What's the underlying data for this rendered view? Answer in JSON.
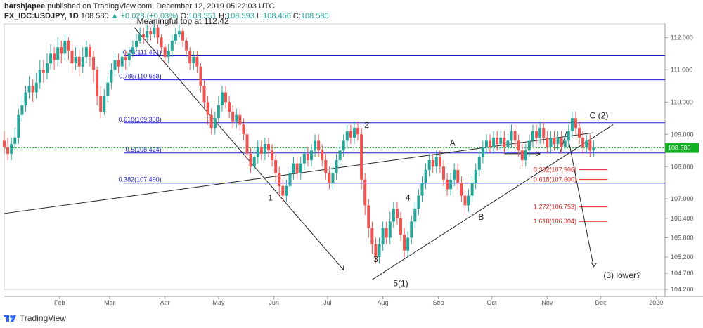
{
  "header": {
    "user": "harshjapee",
    "published_text": "published on TradingView.com, December 12, 2019 05:22:03 UTC",
    "symbol": "FX_IDC:USDJPY, 1D",
    "last": "108.580",
    "change": "+0.028 (+0.03%)",
    "o_label": "O:",
    "o_value": "108.551",
    "h_label": "H:",
    "h_value": "108.593",
    "l_label": "L:",
    "l_value": "108.456",
    "c_label": "C:",
    "c_value": "108.580"
  },
  "footer": {
    "brand": "TradingView"
  },
  "colors": {
    "up": "#26a69a",
    "down": "#ef5350",
    "fib": "#1c1ccc",
    "ext": "#e02020",
    "price_tag": "#13b023"
  },
  "chart_data": {
    "type": "candlestick",
    "title": "FX_IDC:USDJPY, 1D",
    "ylim": [
      104.2,
      112.42
    ],
    "y_ticks": [
      "112.000",
      "111.000",
      "110.000",
      "109.000",
      "108.000",
      "107.000",
      "106.400",
      "105.800",
      "105.200",
      "104.700",
      "104.200"
    ],
    "y_tick_values": [
      112.0,
      111.0,
      110.0,
      109.0,
      108.0,
      107.0,
      106.4,
      105.8,
      105.2,
      104.7,
      104.2
    ],
    "x_ticks": [
      "Feb",
      "Mar",
      "Apr",
      "May",
      "Jun",
      "Jul",
      "Aug",
      "Sep",
      "Oct",
      "Nov",
      "Dec",
      "2020"
    ],
    "x_tick_days": [
      31,
      59,
      90,
      120,
      151,
      181,
      212,
      243,
      273,
      304,
      334,
      365
    ],
    "xlim_days": [
      0,
      370
    ],
    "current_price": {
      "value": 108.58,
      "label": "108.580"
    },
    "fib_levels": [
      {
        "label": "0.88(111.431)",
        "value": 111.431
      },
      {
        "label": "0.786(110.688)",
        "value": 110.688
      },
      {
        "label": "0.618(109.358)",
        "value": 109.358
      },
      {
        "label": "0.5(108.424)",
        "value": 108.424
      },
      {
        "label": "0.382(107.490)",
        "value": 107.49
      }
    ],
    "extension_levels": [
      {
        "label": "0.382(107.906)",
        "value": 107.906
      },
      {
        "label": "0.618(107.600)",
        "value": 107.6
      },
      {
        "label": "1.272(106.753)",
        "value": 106.753
      },
      {
        "label": "1.618(106.304)",
        "value": 106.304
      }
    ],
    "annotations": [
      {
        "text": "Meaningful top at 112.42",
        "day": 100,
        "price": 112.42
      },
      {
        "text": "1",
        "day": 149,
        "price": 106.95
      },
      {
        "text": "2",
        "day": 203,
        "price": 109.2
      },
      {
        "text": "3",
        "day": 208,
        "price": 105.05
      },
      {
        "text": "4",
        "day": 226,
        "price": 106.95
      },
      {
        "text": "5(1)",
        "day": 222,
        "price": 104.3
      },
      {
        "text": "A",
        "day": 251,
        "price": 108.65
      },
      {
        "text": "B",
        "day": 267,
        "price": 106.35
      },
      {
        "text": "C (2)",
        "day": 333,
        "price": 109.5
      },
      {
        "text": "(3) lower?",
        "day": 346,
        "price": 104.55
      }
    ],
    "candles": [
      [
        0,
        108.8,
        108.6,
        109.1,
        108.4
      ],
      [
        2,
        108.6,
        108.4,
        108.9,
        108.2
      ],
      [
        4,
        108.4,
        108.7,
        108.9,
        108.2
      ],
      [
        6,
        108.7,
        108.9,
        109.2,
        108.5
      ],
      [
        8,
        108.9,
        109.6,
        109.8,
        108.7
      ],
      [
        10,
        109.6,
        109.9,
        110.2,
        109.4
      ],
      [
        12,
        109.9,
        110.3,
        110.5,
        109.7
      ],
      [
        14,
        110.3,
        110.5,
        110.8,
        110.1
      ],
      [
        16,
        110.5,
        110.3,
        110.7,
        110.0
      ],
      [
        18,
        110.3,
        110.6,
        110.9,
        110.1
      ],
      [
        20,
        110.6,
        111.0,
        111.3,
        110.4
      ],
      [
        22,
        111.0,
        110.9,
        111.3,
        110.6
      ],
      [
        24,
        110.9,
        111.2,
        111.5,
        110.7
      ],
      [
        26,
        111.2,
        111.5,
        111.8,
        111.0
      ],
      [
        28,
        111.5,
        111.3,
        111.7,
        111.0
      ],
      [
        30,
        111.3,
        111.7,
        112.0,
        111.1
      ],
      [
        32,
        111.7,
        111.5,
        111.9,
        111.2
      ],
      [
        34,
        111.5,
        111.9,
        112.1,
        111.3
      ],
      [
        36,
        111.9,
        111.6,
        112.0,
        111.3
      ],
      [
        38,
        111.6,
        111.2,
        111.8,
        110.9
      ],
      [
        40,
        111.2,
        111.4,
        111.7,
        111.0
      ],
      [
        42,
        111.4,
        111.1,
        111.6,
        110.8
      ],
      [
        44,
        111.1,
        111.4,
        111.7,
        110.9
      ],
      [
        46,
        111.4,
        111.7,
        111.9,
        111.2
      ],
      [
        48,
        111.7,
        111.4,
        111.8,
        111.1
      ],
      [
        50,
        111.4,
        111.0,
        111.6,
        110.6
      ],
      [
        52,
        111.0,
        110.2,
        111.1,
        109.9
      ],
      [
        54,
        110.2,
        109.7,
        110.5,
        109.5
      ],
      [
        56,
        109.7,
        110.2,
        110.4,
        109.6
      ],
      [
        58,
        110.2,
        110.6,
        110.8,
        110.0
      ],
      [
        60,
        110.6,
        111.0,
        111.2,
        110.4
      ],
      [
        62,
        111.0,
        111.3,
        111.5,
        110.8
      ],
      [
        64,
        111.3,
        111.1,
        111.5,
        110.9
      ],
      [
        66,
        111.1,
        111.4,
        111.6,
        110.9
      ],
      [
        68,
        111.4,
        111.3,
        111.6,
        111.0
      ],
      [
        70,
        111.3,
        111.5,
        111.7,
        111.1
      ],
      [
        72,
        111.5,
        111.7,
        111.9,
        111.4
      ],
      [
        74,
        111.7,
        111.9,
        112.1,
        111.6
      ],
      [
        76,
        111.9,
        112.1,
        112.3,
        111.8
      ],
      [
        78,
        112.1,
        112.0,
        112.3,
        111.8
      ],
      [
        80,
        112.0,
        112.2,
        112.4,
        111.9
      ],
      [
        82,
        112.2,
        112.1,
        112.3,
        111.9
      ],
      [
        84,
        112.1,
        112.3,
        112.42,
        112.0
      ],
      [
        86,
        112.3,
        112.0,
        112.4,
        111.8
      ],
      [
        88,
        112.0,
        111.7,
        112.1,
        111.5
      ],
      [
        90,
        111.7,
        111.4,
        111.8,
        111.2
      ],
      [
        92,
        111.4,
        111.6,
        111.8,
        111.2
      ],
      [
        94,
        111.6,
        111.9,
        112.1,
        111.4
      ],
      [
        96,
        111.9,
        112.1,
        112.3,
        111.8
      ],
      [
        98,
        112.1,
        112.2,
        112.4,
        112.0
      ],
      [
        100,
        112.2,
        111.9,
        112.3,
        111.7
      ],
      [
        102,
        111.9,
        111.6,
        112.0,
        111.4
      ],
      [
        104,
        111.6,
        111.2,
        111.7,
        111.0
      ],
      [
        106,
        111.2,
        111.4,
        111.6,
        111.0
      ],
      [
        108,
        111.4,
        111.1,
        111.6,
        110.9
      ],
      [
        110,
        111.1,
        110.5,
        111.2,
        110.3
      ],
      [
        112,
        110.5,
        110.0,
        110.7,
        109.8
      ],
      [
        114,
        110.0,
        109.6,
        110.2,
        109.3
      ],
      [
        116,
        109.6,
        109.2,
        109.8,
        109.0
      ],
      [
        118,
        109.2,
        109.5,
        109.7,
        109.0
      ],
      [
        120,
        109.5,
        109.9,
        110.2,
        109.4
      ],
      [
        122,
        109.9,
        110.3,
        110.5,
        109.7
      ],
      [
        124,
        110.3,
        110.0,
        110.5,
        109.8
      ],
      [
        126,
        110.0,
        109.7,
        110.2,
        109.5
      ],
      [
        128,
        109.7,
        109.4,
        109.9,
        109.2
      ],
      [
        130,
        109.4,
        109.6,
        109.8,
        109.2
      ],
      [
        132,
        109.6,
        109.3,
        109.8,
        109.1
      ],
      [
        134,
        109.3,
        109.0,
        109.5,
        108.8
      ],
      [
        136,
        109.0,
        108.4,
        109.2,
        108.2
      ],
      [
        138,
        108.4,
        108.0,
        108.6,
        107.8
      ],
      [
        140,
        108.0,
        108.3,
        108.5,
        107.9
      ],
      [
        142,
        108.3,
        108.6,
        108.8,
        108.1
      ],
      [
        144,
        108.6,
        108.4,
        108.8,
        108.2
      ],
      [
        146,
        108.4,
        108.7,
        108.9,
        108.2
      ],
      [
        148,
        108.7,
        108.5,
        108.9,
        108.3
      ],
      [
        150,
        108.5,
        108.2,
        108.7,
        108.0
      ],
      [
        152,
        108.2,
        107.8,
        108.4,
        107.5
      ],
      [
        154,
        107.8,
        107.4,
        108.0,
        107.1
      ],
      [
        156,
        107.4,
        107.1,
        107.6,
        106.9
      ],
      [
        158,
        107.1,
        107.4,
        107.6,
        106.9
      ],
      [
        160,
        107.4,
        107.8,
        108.0,
        107.3
      ],
      [
        162,
        107.8,
        108.1,
        108.3,
        107.6
      ],
      [
        164,
        108.1,
        107.8,
        108.3,
        107.6
      ],
      [
        166,
        107.8,
        108.1,
        108.3,
        107.6
      ],
      [
        168,
        108.1,
        108.4,
        108.6,
        107.9
      ],
      [
        170,
        108.4,
        108.2,
        108.6,
        108.0
      ],
      [
        172,
        108.2,
        108.5,
        108.7,
        108.0
      ],
      [
        174,
        108.5,
        108.8,
        109.0,
        108.3
      ],
      [
        176,
        108.8,
        108.5,
        109.0,
        108.3
      ],
      [
        178,
        108.5,
        108.2,
        108.7,
        108.0
      ],
      [
        180,
        108.2,
        107.8,
        108.4,
        107.6
      ],
      [
        182,
        107.8,
        107.5,
        108.0,
        107.3
      ],
      [
        184,
        107.5,
        107.8,
        108.0,
        107.3
      ],
      [
        186,
        107.8,
        108.2,
        108.4,
        107.6
      ],
      [
        188,
        108.2,
        108.5,
        108.7,
        108.0
      ],
      [
        190,
        108.5,
        108.8,
        109.0,
        108.3
      ],
      [
        192,
        108.8,
        109.1,
        109.3,
        108.6
      ],
      [
        194,
        109.1,
        108.9,
        109.3,
        108.7
      ],
      [
        196,
        108.9,
        109.2,
        109.4,
        108.7
      ],
      [
        198,
        109.2,
        109.0,
        109.4,
        108.8
      ],
      [
        200,
        109.0,
        107.6,
        109.2,
        107.3
      ],
      [
        202,
        107.6,
        106.8,
        107.8,
        106.5
      ],
      [
        204,
        106.8,
        106.1,
        107.0,
        105.8
      ],
      [
        206,
        106.1,
        105.6,
        106.3,
        105.3
      ],
      [
        208,
        105.6,
        105.2,
        105.8,
        105.0
      ],
      [
        210,
        105.2,
        105.6,
        105.8,
        105.0
      ],
      [
        212,
        105.6,
        106.1,
        106.3,
        105.4
      ],
      [
        214,
        106.1,
        105.8,
        106.3,
        105.6
      ],
      [
        216,
        105.8,
        106.3,
        106.6,
        105.6
      ],
      [
        218,
        106.3,
        106.7,
        106.9,
        106.1
      ],
      [
        220,
        106.7,
        106.4,
        106.9,
        106.2
      ],
      [
        222,
        106.4,
        105.9,
        106.6,
        105.7
      ],
      [
        224,
        105.9,
        105.4,
        106.1,
        105.2
      ],
      [
        226,
        105.4,
        105.8,
        106.0,
        105.2
      ],
      [
        228,
        105.8,
        106.3,
        106.5,
        105.6
      ],
      [
        230,
        106.3,
        106.7,
        106.9,
        106.1
      ],
      [
        232,
        106.7,
        107.1,
        107.3,
        106.5
      ],
      [
        234,
        107.1,
        107.5,
        107.7,
        106.9
      ],
      [
        236,
        107.5,
        107.9,
        108.1,
        107.3
      ],
      [
        238,
        107.9,
        108.2,
        108.4,
        107.7
      ],
      [
        240,
        108.2,
        108.0,
        108.4,
        107.8
      ],
      [
        242,
        108.0,
        108.3,
        108.5,
        107.8
      ],
      [
        244,
        108.3,
        108.0,
        108.5,
        107.8
      ],
      [
        246,
        108.0,
        107.6,
        108.2,
        107.4
      ],
      [
        248,
        107.6,
        107.3,
        107.8,
        107.1
      ],
      [
        250,
        107.3,
        107.6,
        107.8,
        107.1
      ],
      [
        252,
        107.6,
        107.9,
        108.1,
        107.4
      ],
      [
        254,
        107.9,
        107.5,
        108.1,
        107.3
      ],
      [
        256,
        107.5,
        107.1,
        107.7,
        106.9
      ],
      [
        258,
        107.1,
        106.8,
        107.3,
        106.5
      ],
      [
        260,
        106.8,
        107.1,
        107.3,
        106.6
      ],
      [
        262,
        107.1,
        107.5,
        107.7,
        106.9
      ],
      [
        264,
        107.5,
        107.9,
        108.1,
        107.3
      ],
      [
        266,
        107.9,
        108.3,
        108.5,
        107.7
      ],
      [
        268,
        108.3,
        108.6,
        108.8,
        108.1
      ],
      [
        270,
        108.6,
        108.8,
        109.0,
        108.4
      ],
      [
        272,
        108.8,
        108.6,
        109.0,
        108.4
      ],
      [
        274,
        108.6,
        108.9,
        109.1,
        108.4
      ],
      [
        276,
        108.9,
        108.7,
        109.1,
        108.5
      ],
      [
        278,
        108.7,
        108.9,
        109.1,
        108.5
      ],
      [
        280,
        108.9,
        108.6,
        109.1,
        108.4
      ],
      [
        282,
        108.6,
        108.8,
        109.0,
        108.4
      ],
      [
        284,
        108.8,
        109.1,
        109.3,
        108.6
      ],
      [
        286,
        109.1,
        108.8,
        109.3,
        108.6
      ],
      [
        288,
        108.8,
        108.5,
        109.0,
        108.3
      ],
      [
        290,
        108.5,
        108.2,
        108.7,
        108.0
      ],
      [
        292,
        108.2,
        108.5,
        108.7,
        108.0
      ],
      [
        294,
        108.5,
        108.8,
        109.0,
        108.3
      ],
      [
        296,
        108.8,
        109.1,
        109.3,
        108.6
      ],
      [
        298,
        109.1,
        108.9,
        109.3,
        108.7
      ],
      [
        300,
        108.9,
        109.2,
        109.4,
        108.7
      ],
      [
        302,
        109.2,
        108.9,
        109.4,
        108.7
      ],
      [
        304,
        108.9,
        108.6,
        109.1,
        108.4
      ],
      [
        306,
        108.6,
        108.9,
        109.1,
        108.4
      ],
      [
        308,
        108.9,
        108.7,
        109.1,
        108.5
      ],
      [
        310,
        108.7,
        108.9,
        109.1,
        108.5
      ],
      [
        312,
        108.9,
        108.6,
        109.1,
        108.4
      ],
      [
        314,
        108.6,
        108.8,
        109.0,
        108.4
      ],
      [
        316,
        108.8,
        109.1,
        109.3,
        108.6
      ],
      [
        318,
        109.1,
        109.5,
        109.7,
        108.9
      ],
      [
        320,
        109.5,
        109.2,
        109.7,
        109.0
      ],
      [
        322,
        109.2,
        108.9,
        109.4,
        108.7
      ],
      [
        324,
        108.9,
        108.6,
        109.1,
        108.4
      ],
      [
        326,
        108.6,
        108.8,
        109.0,
        108.4
      ],
      [
        328,
        108.8,
        108.5,
        109.0,
        108.3
      ],
      [
        330,
        108.5,
        108.58,
        108.8,
        108.3
      ]
    ]
  }
}
